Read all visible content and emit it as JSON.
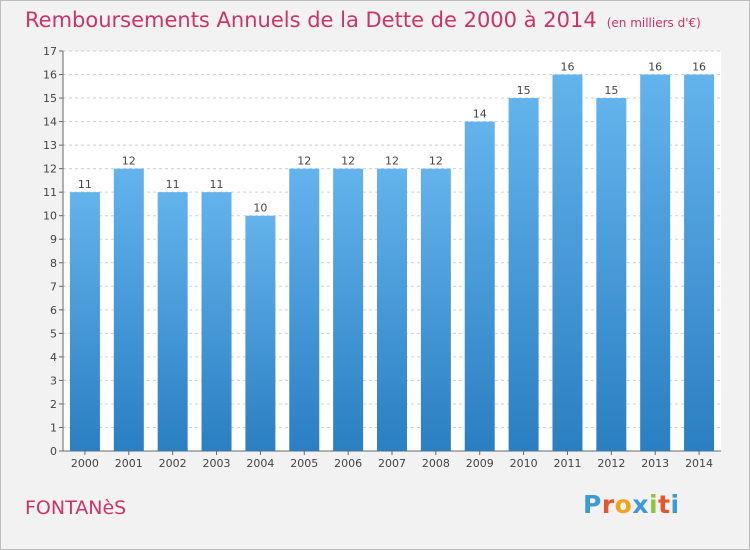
{
  "header": {
    "title": "Remboursements Annuels de la Dette de 2000 à 2014",
    "subtitle": "(en milliers d'€)"
  },
  "footer": {
    "commune": "FONTANèS",
    "brand_letters": [
      "P",
      "r",
      "o",
      "x",
      "i",
      "t",
      "i"
    ],
    "brand_colors": [
      "#3a9bd5",
      "#e8542b",
      "#f2a21b",
      "#3a9bd5",
      "#8cc63f",
      "#e8542b",
      "#3a9bd5"
    ]
  },
  "colors": {
    "bar_top": "#63b3ec",
    "bar_bottom": "#2a7fc2",
    "grid": "#cfcfcf",
    "title": "#cc3366"
  },
  "chart_data": {
    "type": "bar",
    "title": "Remboursements Annuels de la Dette de 2000 à 2014",
    "subtitle": "(en milliers d'€)",
    "categories": [
      "2000",
      "2001",
      "2002",
      "2003",
      "2004",
      "2005",
      "2006",
      "2007",
      "2008",
      "2009",
      "2010",
      "2011",
      "2012",
      "2013",
      "2014"
    ],
    "values": [
      11,
      12,
      11,
      11,
      10,
      12,
      12,
      12,
      12,
      14,
      15,
      16,
      15,
      16,
      16
    ],
    "ylim": [
      0,
      17
    ],
    "yticks": [
      0,
      1,
      2,
      3,
      4,
      5,
      6,
      7,
      8,
      9,
      10,
      11,
      12,
      13,
      14,
      15,
      16,
      17
    ],
    "grid": true,
    "grid_style": "dashed horizontal"
  }
}
